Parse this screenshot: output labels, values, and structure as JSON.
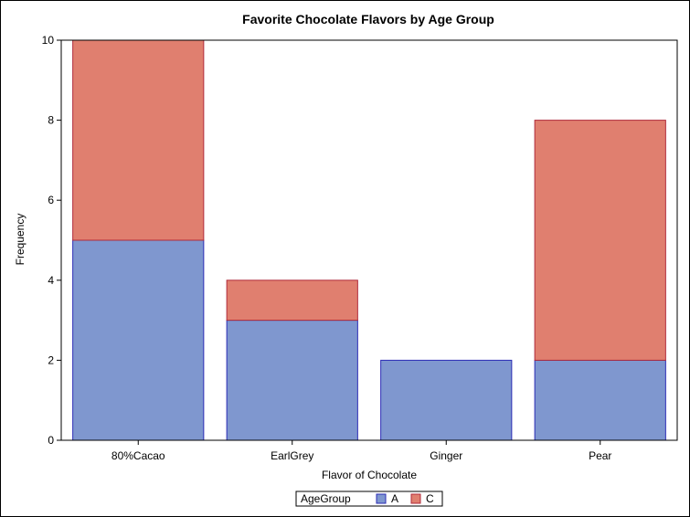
{
  "chart_data": {
    "type": "bar",
    "stacked": true,
    "title": "Favorite Chocolate Flavors by Age Group",
    "xlabel": "Flavor of Chocolate",
    "ylabel": "Frequency",
    "categories": [
      "80%Cacao",
      "EarlGrey",
      "Ginger",
      "Pear"
    ],
    "series": [
      {
        "name": "A",
        "values": [
          5,
          3,
          2,
          2
        ],
        "color": "#7f97cf",
        "stroke": "#2b2bb5"
      },
      {
        "name": "C",
        "values": [
          5,
          1,
          0,
          6
        ],
        "color": "#e07f6f",
        "stroke": "#b02b3b"
      }
    ],
    "ylim": [
      0,
      10
    ],
    "yticks": [
      0,
      2,
      4,
      6,
      8,
      10
    ],
    "grid": false,
    "legend": {
      "title": "AgeGroup",
      "placement": "bottom-center"
    }
  }
}
